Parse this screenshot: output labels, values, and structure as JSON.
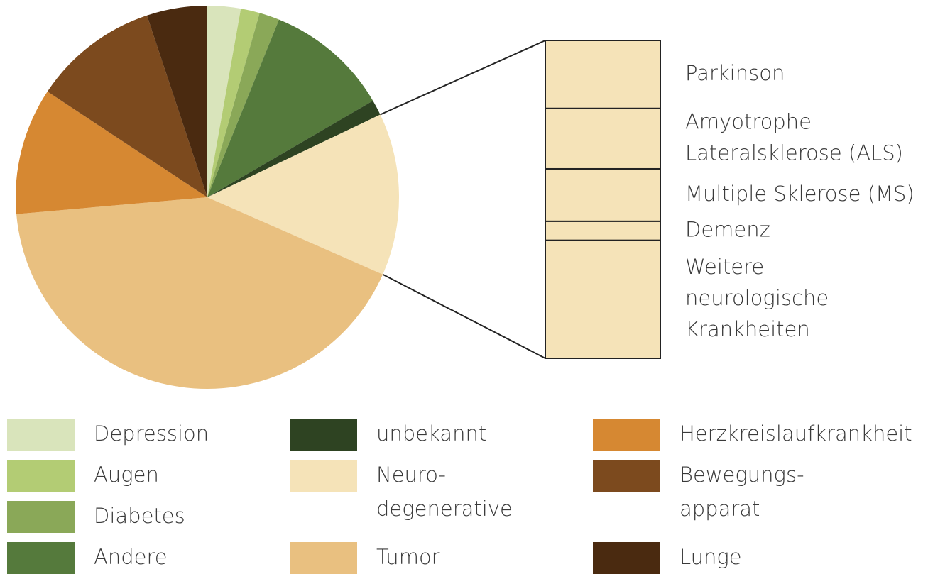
{
  "chart_data": {
    "type": "pie-of-bar",
    "categories": [
      "Depression",
      "Augen",
      "Diabetes",
      "Andere",
      "unbekannt",
      "Neuro-\ndegenerative",
      "Tumor",
      "Herzkreislaufkrankheit",
      "Bewegungs-\napparat",
      "Lunge"
    ],
    "values": [
      2.8,
      1.6,
      1.7,
      10.5,
      1.3,
      13.7,
      42,
      10.7,
      10.6,
      5.1
    ],
    "colors": [
      "#d9e4bb",
      "#b3cc74",
      "#8aa858",
      "#557a3c",
      "#2e4322",
      "#f5e3b8",
      "#e9c080",
      "#d68832",
      "#7c4a1e",
      "#4a2a10"
    ],
    "detail": {
      "of": 5,
      "categories": [
        "Parkinson",
        "Amyotrophe\nLateralsklerose (ALS)",
        "Multiple Sklerose (MS)",
        "Demenz",
        "Weitere\nneurologische\nKrankheiten"
      ],
      "values": [
        21.4,
        19,
        16.5,
        6,
        37.1
      ]
    }
  }
}
